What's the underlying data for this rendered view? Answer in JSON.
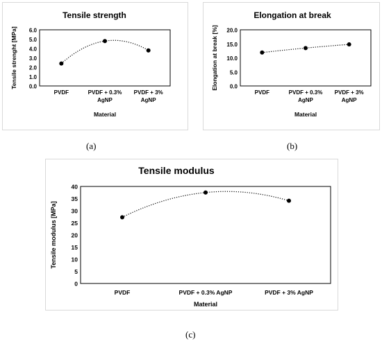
{
  "chart_data": [
    {
      "type": "line",
      "line_style": "dotted",
      "title": "Tensile strength",
      "xlabel": "Material",
      "ylabel": "Tensile strenght [MPa]",
      "categories": [
        [
          "PVDF"
        ],
        [
          "PVDF + 0.3%",
          "AgNP"
        ],
        [
          "PVDF + 3%",
          "AgNP"
        ]
      ],
      "values": [
        2.4,
        4.8,
        3.8
      ],
      "yticks": [
        "0.0",
        "1.0",
        "2.0",
        "3.0",
        "4.0",
        "5.0",
        "6.0"
      ],
      "ylim": [
        0,
        6
      ],
      "grid": false,
      "caption": "(a)"
    },
    {
      "type": "line",
      "line_style": "dotted",
      "title": "Elongation at break",
      "xlabel": "Material",
      "ylabel": "Elongation at break [%]",
      "categories": [
        [
          "PVDF"
        ],
        [
          "PVDF + 0.3%",
          "AgNP"
        ],
        [
          "PVDF + 3%",
          "AgNP"
        ]
      ],
      "values": [
        11.9,
        13.5,
        14.8
      ],
      "yticks": [
        "0.0",
        "5.0",
        "10.0",
        "15.0",
        "20.0"
      ],
      "ylim": [
        0,
        20
      ],
      "grid": false,
      "caption": "(b)"
    },
    {
      "type": "line",
      "line_style": "dotted",
      "title": "Tensile modulus",
      "xlabel": "Material",
      "ylabel": "Tensile modulus [MPa]",
      "categories": [
        [
          "PVDF"
        ],
        [
          "PVDF + 0.3% AgNP"
        ],
        [
          "PVDF + 3% AgNP"
        ]
      ],
      "values": [
        27.3,
        37.5,
        34.1
      ],
      "yticks": [
        "0",
        "5",
        "10",
        "15",
        "20",
        "25",
        "30",
        "35",
        "40"
      ],
      "ylim": [
        0,
        40
      ],
      "grid": false,
      "caption": "(c)"
    }
  ]
}
